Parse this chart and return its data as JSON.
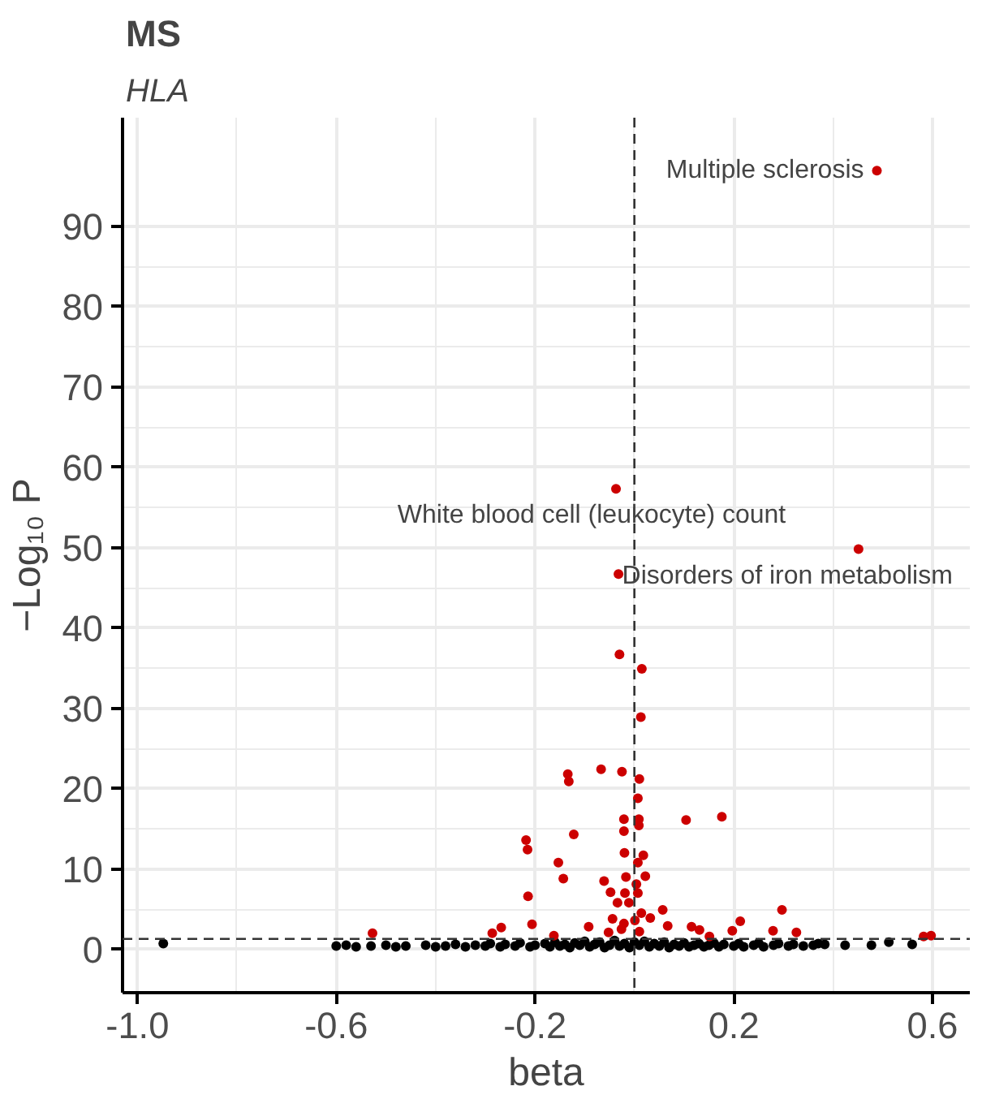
{
  "chart_data": {
    "type": "scatter",
    "title": "MS",
    "subtitle": "HLA",
    "xlabel": "beta",
    "ylabel": "−Log₁₀ P",
    "xlim": [
      -1.03,
      0.675
    ],
    "ylim": [
      -5.4,
      103.5
    ],
    "xticks": [
      {
        "value": -1.0,
        "label": "-1.0"
      },
      {
        "value": -0.6,
        "label": "-0.6"
      },
      {
        "value": -0.2,
        "label": "-0.2"
      },
      {
        "value": 0.2,
        "label": "0.2"
      },
      {
        "value": 0.6,
        "label": "0.6"
      }
    ],
    "yticks": [
      0,
      10,
      20,
      30,
      40,
      50,
      60,
      70,
      80,
      90
    ],
    "grid": true,
    "marker": "circle",
    "ref_lines": [
      {
        "axis": "x",
        "value": 0,
        "line_style": "dashed",
        "color": "#333333"
      },
      {
        "axis": "y",
        "value": 1.3,
        "line_style": "dashed",
        "color": "#333333"
      }
    ],
    "annotations": [
      {
        "text": "Multiple sclerosis",
        "x": 0.488,
        "y": 96.9
      },
      {
        "text": "White blood cell (leukocyte) count",
        "x": -0.037,
        "y": 57.3
      },
      {
        "text": "Disorders of iron metabolism",
        "x": 0.451,
        "y": 49.8
      }
    ],
    "series": [
      {
        "color": "#000000",
        "x": [
          -0.948,
          -0.6,
          -0.58,
          -0.56,
          -0.53,
          -0.5,
          -0.48,
          -0.46,
          -0.42,
          -0.4,
          -0.38,
          -0.36,
          -0.34,
          -0.32,
          -0.3,
          -0.29,
          -0.27,
          -0.26,
          -0.24,
          -0.23,
          -0.21,
          -0.2,
          -0.18,
          -0.17,
          -0.16,
          -0.15,
          -0.14,
          -0.13,
          -0.12,
          -0.11,
          -0.1,
          -0.09,
          -0.08,
          -0.07,
          -0.06,
          -0.05,
          -0.04,
          -0.03,
          -0.02,
          -0.01,
          0.0,
          0.01,
          0.02,
          0.03,
          0.04,
          0.05,
          0.06,
          0.07,
          0.08,
          0.09,
          0.1,
          0.11,
          0.12,
          0.13,
          0.14,
          0.15,
          0.16,
          0.17,
          0.18,
          0.2,
          0.21,
          0.22,
          0.24,
          0.25,
          0.26,
          0.28,
          0.29,
          0.31,
          0.32,
          0.34,
          0.36,
          0.37,
          0.383,
          0.424,
          0.477,
          0.512,
          0.559
        ],
        "values": [
          0.7,
          0.4,
          0.5,
          0.3,
          0.4,
          0.5,
          0.3,
          0.4,
          0.5,
          0.3,
          0.4,
          0.6,
          0.3,
          0.5,
          0.4,
          0.7,
          0.3,
          0.6,
          0.4,
          0.8,
          0.3,
          0.5,
          0.7,
          0.3,
          0.9,
          0.4,
          0.6,
          0.2,
          0.8,
          0.5,
          1.0,
          0.3,
          0.6,
          0.9,
          0.2,
          0.5,
          1.1,
          0.4,
          0.7,
          0.2,
          0.9,
          0.5,
          1.0,
          0.3,
          0.7,
          0.4,
          0.9,
          0.2,
          0.6,
          0.4,
          0.8,
          0.3,
          0.5,
          0.7,
          0.3,
          0.5,
          0.8,
          0.3,
          0.6,
          0.4,
          0.7,
          0.3,
          0.5,
          0.8,
          0.3,
          0.5,
          0.7,
          0.4,
          0.6,
          0.4,
          0.5,
          0.7,
          0.6,
          0.5,
          0.5,
          0.9,
          0.6
        ]
      },
      {
        "color": "#cc0000",
        "x": [
          0.488,
          -0.037,
          0.451,
          -0.032,
          -0.03,
          0.015,
          0.013,
          -0.134,
          -0.132,
          -0.067,
          -0.025,
          0.01,
          0.007,
          -0.021,
          0.009,
          0.009,
          -0.021,
          0.104,
          0.176,
          -0.218,
          -0.215,
          -0.122,
          -0.02,
          0.018,
          -0.153,
          0.007,
          -0.143,
          -0.061,
          -0.017,
          0.022,
          0.004,
          -0.048,
          -0.019,
          0.007,
          -0.214,
          -0.034,
          -0.011,
          0.057,
          0.014,
          0.297,
          -0.206,
          -0.092,
          -0.044,
          -0.021,
          0.001,
          0.032,
          0.067,
          0.115,
          0.131,
          0.213,
          0.197,
          0.279,
          0.326,
          0.151,
          -0.268,
          -0.286,
          -0.162,
          -0.052,
          -0.026,
          0.01,
          -0.527,
          0.582,
          0.597
        ],
        "values": [
          96.9,
          57.3,
          49.8,
          46.7,
          36.7,
          34.9,
          28.9,
          21.8,
          20.9,
          22.4,
          22.1,
          21.2,
          18.8,
          16.2,
          16.2,
          15.4,
          14.7,
          16.1,
          16.5,
          13.6,
          12.4,
          14.3,
          12.0,
          11.7,
          10.8,
          10.8,
          8.8,
          8.5,
          9.0,
          9.1,
          8.1,
          7.1,
          7.0,
          7.0,
          6.6,
          5.8,
          5.8,
          4.9,
          4.5,
          4.9,
          3.1,
          2.8,
          3.8,
          3.2,
          3.6,
          3.9,
          2.9,
          2.8,
          2.4,
          3.5,
          2.3,
          2.3,
          2.1,
          1.6,
          2.7,
          2.0,
          1.7,
          2.1,
          2.5,
          2.2,
          2.0,
          1.6,
          1.7
        ]
      }
    ]
  }
}
